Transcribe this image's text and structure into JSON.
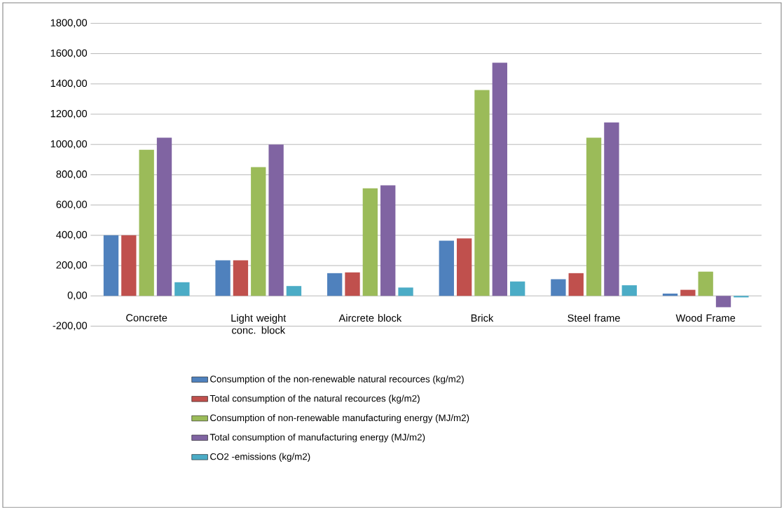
{
  "chart_data": {
    "type": "bar",
    "categories": [
      "Concrete",
      "Light weight conc. block",
      "Aircrete block",
      "Brick",
      "Steel frame",
      "Wood Frame"
    ],
    "series": [
      {
        "name": "Consumption of the non-renewable natural recources (kg/m2)",
        "color": "#4f81bd",
        "values": [
          400,
          235,
          150,
          365,
          110,
          15
        ]
      },
      {
        "name": "Total consumption of the natural recources (kg/m2)",
        "color": "#c0504d",
        "values": [
          400,
          235,
          155,
          380,
          150,
          40
        ]
      },
      {
        "name": "Consumption of non-renewable manufacturing energy (MJ/m2)",
        "color": "#9bbb59",
        "values": [
          965,
          850,
          710,
          1360,
          1045,
          160
        ]
      },
      {
        "name": "Total consumption of manufacturing energy (MJ/m2)",
        "color": "#8064a2",
        "values": [
          1045,
          1000,
          730,
          1540,
          1145,
          -75
        ]
      },
      {
        "name": "CO2 -emissions (kg/m2)",
        "color": "#4bacc6",
        "values": [
          90,
          65,
          55,
          95,
          70,
          -10
        ]
      }
    ],
    "ylim": [
      -200,
      1800
    ],
    "yticks": [
      {
        "value": -200,
        "label": "-200,00"
      },
      {
        "value": 0,
        "label": "0,00"
      },
      {
        "value": 200,
        "label": "200,00"
      },
      {
        "value": 400,
        "label": "400,00"
      },
      {
        "value": 600,
        "label": "600,00"
      },
      {
        "value": 800,
        "label": "800,00"
      },
      {
        "value": 1000,
        "label": "1000,00"
      },
      {
        "value": 1200,
        "label": "1200,00"
      },
      {
        "value": 1400,
        "label": "1400,00"
      },
      {
        "value": 1600,
        "label": "1600,00"
      },
      {
        "value": 1800,
        "label": "1800,00"
      }
    ],
    "grid": "y",
    "legend": "bottom"
  }
}
